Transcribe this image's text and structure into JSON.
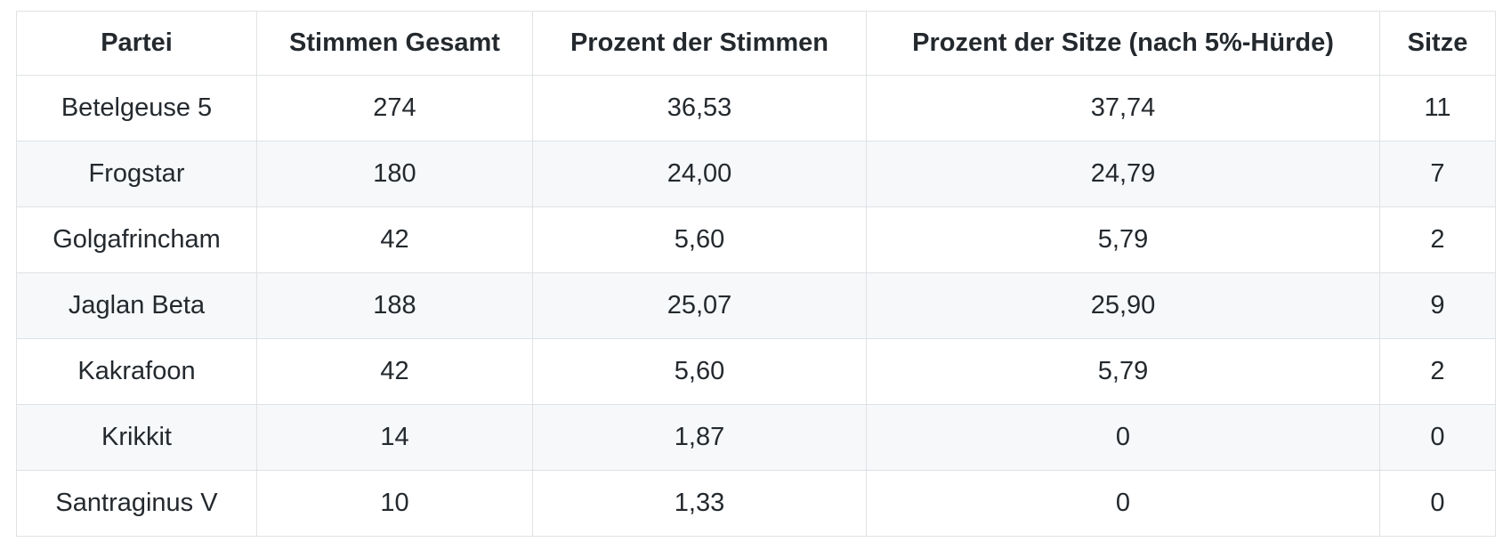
{
  "chart_data": {
    "type": "table",
    "title": "",
    "columns": [
      "Partei",
      "Stimmen Gesamt",
      "Prozent der Stimmen",
      "Prozent der Sitze (nach 5%-Hürde)",
      "Sitze"
    ],
    "rows": [
      [
        "Betelgeuse 5",
        "274",
        "36,53",
        "37,74",
        "11"
      ],
      [
        "Frogstar",
        "180",
        "24,00",
        "24,79",
        "7"
      ],
      [
        "Golgafrincham",
        "42",
        "5,60",
        "5,79",
        "2"
      ],
      [
        "Jaglan Beta",
        "188",
        "25,07",
        "25,90",
        "9"
      ],
      [
        "Kakrafoon",
        "42",
        "5,60",
        "5,79",
        "2"
      ],
      [
        "Krikkit",
        "14",
        "1,87",
        "0",
        "0"
      ],
      [
        "Santraginus V",
        "10",
        "1,33",
        "0",
        "0"
      ]
    ]
  },
  "colors": {
    "text": "#24292e",
    "border": "#dfe2e5",
    "row_stripe": "#f6f8fa",
    "background": "#ffffff"
  }
}
